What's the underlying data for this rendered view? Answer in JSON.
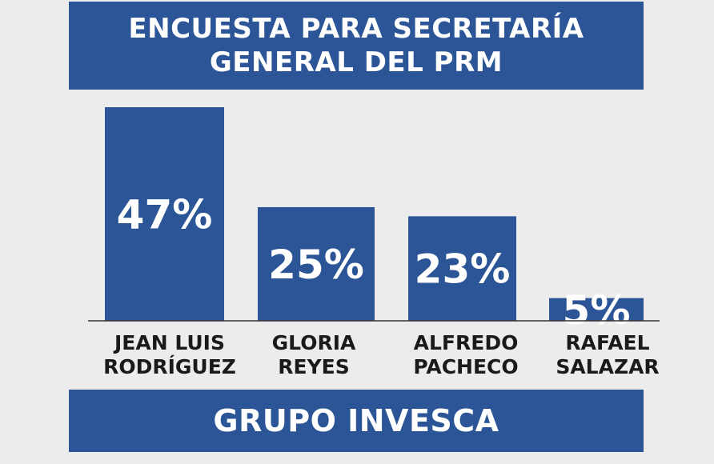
{
  "chart_data": {
    "type": "bar",
    "title_lines": [
      "ENCUESTA PARA SECRETARÍA",
      "GENERAL DEL PRM"
    ],
    "categories": [
      [
        "JEAN LUIS",
        "RODRÍGUEZ"
      ],
      [
        "GLORIA",
        "REYES"
      ],
      [
        "ALFREDO",
        "PACHECO"
      ],
      [
        "RAFAEL",
        "SALAZAR"
      ]
    ],
    "values": [
      47,
      25,
      23,
      5
    ],
    "value_labels": [
      "47%",
      "25%",
      "23%",
      "5%"
    ],
    "source": "GRUPO INVESCA",
    "colors": {
      "bar": "#2b5597",
      "banner": "#2b5597",
      "background": "#ececec"
    },
    "grid": false,
    "legend": "none"
  }
}
